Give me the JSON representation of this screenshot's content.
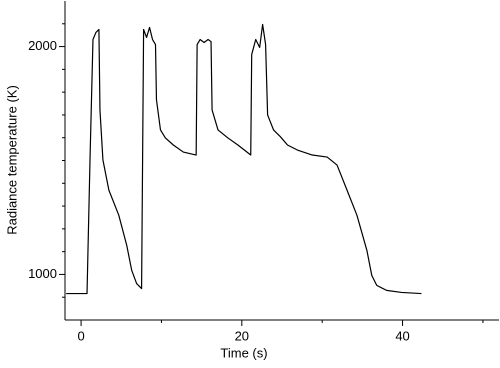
{
  "chart_data": {
    "type": "line",
    "xlabel": "Time (s)",
    "ylabel": "Radiance temperature (K)",
    "xlim": [
      -2,
      52
    ],
    "ylim": [
      800,
      2200
    ],
    "xticks": [
      0,
      20,
      40
    ],
    "yticks": [
      1000,
      2000
    ],
    "xminorticks": [
      10,
      30,
      50
    ],
    "yminorticks": [
      900,
      1100,
      1200,
      1300,
      1400,
      1500,
      1600,
      1700,
      1800,
      1900,
      2100
    ],
    "color": "#000000",
    "x": [
      -1.85,
      0.74,
      1.11,
      1.48,
      1.85,
      2.22,
      2.35,
      2.72,
      3.46,
      4.69,
      5.68,
      6.3,
      6.91,
      7.53,
      7.78,
      8.15,
      8.52,
      8.89,
      9.26,
      9.38,
      9.88,
      10.49,
      11.48,
      12.72,
      14.32,
      14.44,
      14.81,
      15.31,
      15.8,
      16.17,
      16.3,
      17.04,
      18.27,
      19.51,
      21.11,
      21.23,
      21.73,
      22.22,
      22.59,
      22.96,
      23.21,
      23.95,
      24.81,
      25.68,
      26.91,
      28.77,
      30.62,
      31.85,
      33.09,
      34.32,
      35.56,
      36.17,
      36.79,
      38.02,
      39.88,
      42.35
    ],
    "values": [
      916,
      916,
      1502,
      2031,
      2062,
      2075,
      1722,
      1502,
      1370,
      1260,
      1128,
      1018,
      960,
      938,
      2075,
      2040,
      2084,
      2031,
      2009,
      1767,
      1634,
      1599,
      1568,
      1537,
      1524,
      2009,
      2031,
      2018,
      2031,
      2022,
      1722,
      1634,
      1599,
      1568,
      1524,
      1965,
      2031,
      1996,
      2097,
      2009,
      1700,
      1634,
      1604,
      1568,
      1546,
      1524,
      1515,
      1480,
      1370,
      1260,
      1106,
      996,
      952,
      930,
      921,
      916
    ]
  }
}
